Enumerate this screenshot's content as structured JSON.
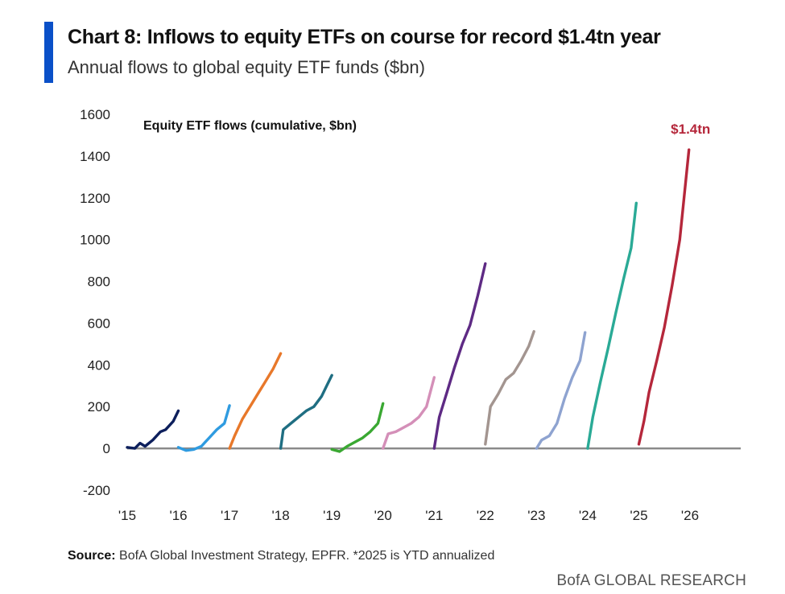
{
  "header": {
    "title": "Chart 8: Inflows to equity ETFs on course for record $1.4tn year",
    "subtitle": "Annual flows to global equity ETF funds ($bn)",
    "accent_color": "#0a50c8"
  },
  "footer": {
    "source_label": "Source:",
    "source_text": "BofA Global Investment Strategy, EPFR. *2025 is YTD annualized",
    "brand": "BofA GLOBAL RESEARCH"
  },
  "chart_data": {
    "type": "line",
    "inner_label": "Equity ETF flows (cumulative, $bn)",
    "annotation": {
      "text": "$1.4tn",
      "x": 2025.98,
      "y": 1430,
      "color": "#b5273b"
    },
    "xlabel": "",
    "ylabel": "",
    "ylim": [
      -200,
      1600
    ],
    "xlim": [
      2015,
      2026
    ],
    "y_ticks": [
      -200,
      0,
      200,
      400,
      600,
      800,
      1000,
      1200,
      1400,
      1600
    ],
    "x_ticks": [
      {
        "value": 2015,
        "label": "'15"
      },
      {
        "value": 2016,
        "label": "'16"
      },
      {
        "value": 2017,
        "label": "'17"
      },
      {
        "value": 2018,
        "label": "'18"
      },
      {
        "value": 2019,
        "label": "'19"
      },
      {
        "value": 2020,
        "label": "'20"
      },
      {
        "value": 2021,
        "label": "'21"
      },
      {
        "value": 2022,
        "label": "'22"
      },
      {
        "value": 2023,
        "label": "'23"
      },
      {
        "value": 2024,
        "label": "'24"
      },
      {
        "value": 2025,
        "label": "'25"
      },
      {
        "value": 2026,
        "label": "'26"
      }
    ],
    "grid": false,
    "zero_line": true,
    "series": [
      {
        "color": "#0d1f5c",
        "x": [
          2015.0,
          2015.15,
          2015.25,
          2015.35,
          2015.5,
          2015.65,
          2015.75,
          2015.9,
          2016.0
        ],
        "y": [
          5,
          0,
          25,
          10,
          40,
          80,
          90,
          130,
          180
        ]
      },
      {
        "color": "#2f9be0",
        "x": [
          2016.0,
          2016.15,
          2016.3,
          2016.45,
          2016.6,
          2016.75,
          2016.9,
          2017.0
        ],
        "y": [
          5,
          -10,
          -5,
          10,
          50,
          90,
          120,
          205
        ]
      },
      {
        "color": "#e8782a",
        "x": [
          2017.0,
          2017.1,
          2017.25,
          2017.4,
          2017.55,
          2017.7,
          2017.85,
          2018.0
        ],
        "y": [
          0,
          60,
          140,
          200,
          260,
          320,
          380,
          455
        ]
      },
      {
        "color": "#1f6e82",
        "x": [
          2018.0,
          2018.05,
          2018.2,
          2018.35,
          2018.5,
          2018.65,
          2018.8,
          2018.9,
          2019.0
        ],
        "y": [
          0,
          90,
          120,
          150,
          180,
          200,
          250,
          300,
          350
        ]
      },
      {
        "color": "#3aa832",
        "x": [
          2019.0,
          2019.15,
          2019.3,
          2019.45,
          2019.6,
          2019.75,
          2019.9,
          2020.0
        ],
        "y": [
          -5,
          -15,
          10,
          30,
          50,
          80,
          120,
          215
        ]
      },
      {
        "color": "#d48fb8",
        "x": [
          2020.0,
          2020.1,
          2020.25,
          2020.4,
          2020.55,
          2020.7,
          2020.85,
          2021.0
        ],
        "y": [
          0,
          70,
          80,
          100,
          120,
          150,
          200,
          340
        ]
      },
      {
        "color": "#5e2a84",
        "x": [
          2021.0,
          2021.1,
          2021.25,
          2021.4,
          2021.55,
          2021.7,
          2021.85,
          2022.0
        ],
        "y": [
          0,
          150,
          270,
          390,
          500,
          590,
          730,
          885
        ]
      },
      {
        "color": "#a39590",
        "x": [
          2022.0,
          2022.1,
          2022.25,
          2022.4,
          2022.55,
          2022.7,
          2022.85,
          2022.95
        ],
        "y": [
          20,
          200,
          260,
          330,
          360,
          420,
          490,
          560
        ]
      },
      {
        "color": "#8ea3d0",
        "x": [
          2023.0,
          2023.1,
          2023.25,
          2023.4,
          2023.55,
          2023.7,
          2023.85,
          2023.95
        ],
        "y": [
          0,
          40,
          60,
          120,
          240,
          340,
          420,
          555
        ]
      },
      {
        "color": "#2aaa96",
        "x": [
          2024.0,
          2024.1,
          2024.25,
          2024.4,
          2024.55,
          2024.7,
          2024.85,
          2024.95
        ],
        "y": [
          0,
          150,
          320,
          480,
          650,
          810,
          960,
          1175
        ]
      },
      {
        "color": "#b5273b",
        "x": [
          2025.0,
          2025.1,
          2025.2,
          2025.35,
          2025.5,
          2025.65,
          2025.8,
          2025.98
        ],
        "y": [
          20,
          130,
          270,
          420,
          580,
          780,
          1000,
          1430
        ]
      }
    ]
  }
}
